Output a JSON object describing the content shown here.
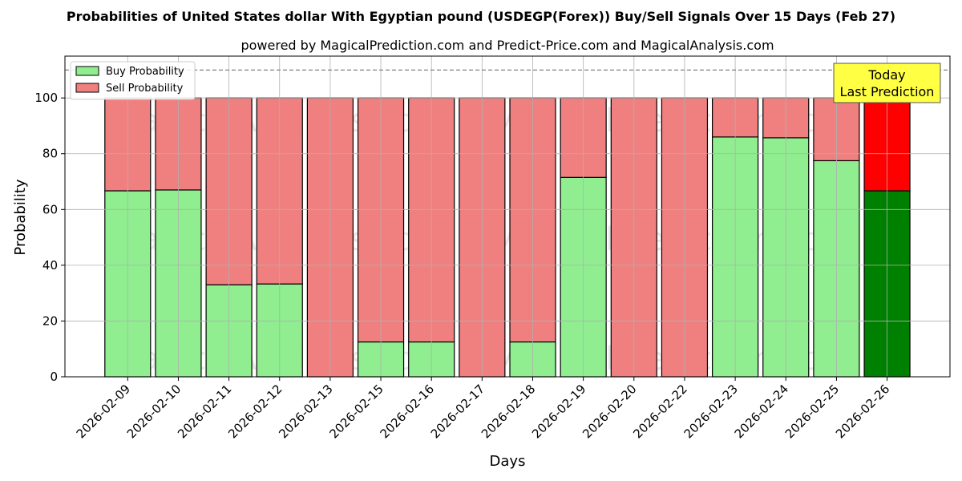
{
  "chart_data": {
    "type": "bar",
    "stacked": true,
    "title": "Probabilities of United States dollar With Egyptian pound (USDEGP(Forex)) Buy/Sell Signals Over 15 Days (Feb 27)",
    "subtitle": "powered by MagicalPrediction.com and Predict-Price.com and MagicalAnalysis.com",
    "xlabel": "Days",
    "ylabel": "Probability",
    "ylim": [
      0,
      115
    ],
    "yticks": [
      0,
      20,
      40,
      60,
      80,
      100
    ],
    "grid": true,
    "legend_position": "top-left",
    "reference_line": 110,
    "categories": [
      "2026-02-09",
      "2026-02-10",
      "2026-02-11",
      "2026-02-12",
      "2026-02-13",
      "2026-02-15",
      "2026-02-16",
      "2026-02-17",
      "2026-02-18",
      "2026-02-19",
      "2026-02-20",
      "2026-02-22",
      "2026-02-23",
      "2026-02-24",
      "2026-02-25",
      "2026-02-26"
    ],
    "series": [
      {
        "name": "Buy Probability",
        "color": "#90ee90",
        "highlight_color": "#008000",
        "values": [
          66.7,
          67,
          33,
          33.3,
          0,
          12.5,
          12.5,
          0,
          12.5,
          71.5,
          0,
          0,
          86,
          85.7,
          77.5,
          66.7
        ]
      },
      {
        "name": "Sell Probability",
        "color": "#f08080",
        "highlight_color": "#ff0000",
        "values": [
          33.3,
          33,
          67,
          66.7,
          100,
          87.5,
          87.5,
          100,
          87.5,
          28.5,
          100,
          100,
          14,
          14.3,
          22.5,
          33.3
        ]
      }
    ],
    "highlight_index": 15,
    "annotation": {
      "lines": [
        "Today",
        "Last Prediction"
      ],
      "bg": "#ffff44"
    },
    "watermarks": [
      "MagicalAnalysis.com",
      "MagicalPrediction.com"
    ]
  }
}
